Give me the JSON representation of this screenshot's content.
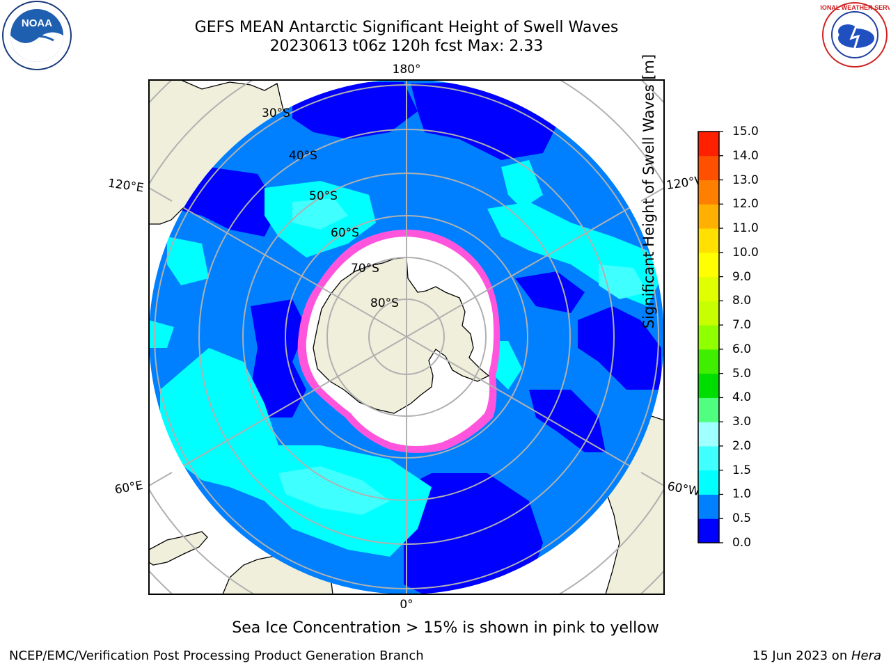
{
  "title_line1": "GEFS MEAN Antarctic Significant Height of Swell Waves",
  "title_line2": "20230613 t06z 120h fcst   Max: 2.33",
  "map": {
    "lon_labels": {
      "top": "180°",
      "bottom": "0°",
      "upper_left": "120°E",
      "lower_left": "60°E",
      "upper_right": "120°W",
      "lower_right": "60°W"
    },
    "lat_labels": [
      "30°S",
      "40°S",
      "50°S",
      "60°S",
      "70°S",
      "80°S"
    ],
    "land_color": "#efefdb",
    "ice_color": "#ffffff",
    "ice_edge_colors": [
      "#ff00ff",
      "#ff66cc",
      "#ffb347",
      "#ffff00"
    ]
  },
  "colorbar": {
    "label": "Significant Height of Swell Waves [m]",
    "ticks": [
      "15.0",
      "14.0",
      "13.0",
      "12.0",
      "11.0",
      "10.0",
      "9.0",
      "8.0",
      "7.0",
      "6.0",
      "5.0",
      "4.0",
      "3.0",
      "2.0",
      "1.5",
      "1.0",
      "0.5",
      "0.0"
    ],
    "colors_bottom_to_top": [
      "#0000ff",
      "#0080ff",
      "#00ffff",
      "#40ffff",
      "#a0ffff",
      "#50ff80",
      "#00dd00",
      "#40ee00",
      "#90ff00",
      "#c8ff00",
      "#e0ff00",
      "#ffff00",
      "#ffe000",
      "#ffb000",
      "#ff8000",
      "#ff5000",
      "#ff2000",
      "#ff0000"
    ]
  },
  "sea_ice_note": "Sea Ice Concentration > 15% is shown in pink to yellow",
  "footer": {
    "left": "NCEP/EMC/Verification Post Processing Product Generation Branch",
    "right_date": "15 Jun 2023 on ",
    "right_host": "Hera"
  },
  "logos": {
    "left": "NOAA",
    "right": "NATIONAL WEATHER SERVICE"
  }
}
